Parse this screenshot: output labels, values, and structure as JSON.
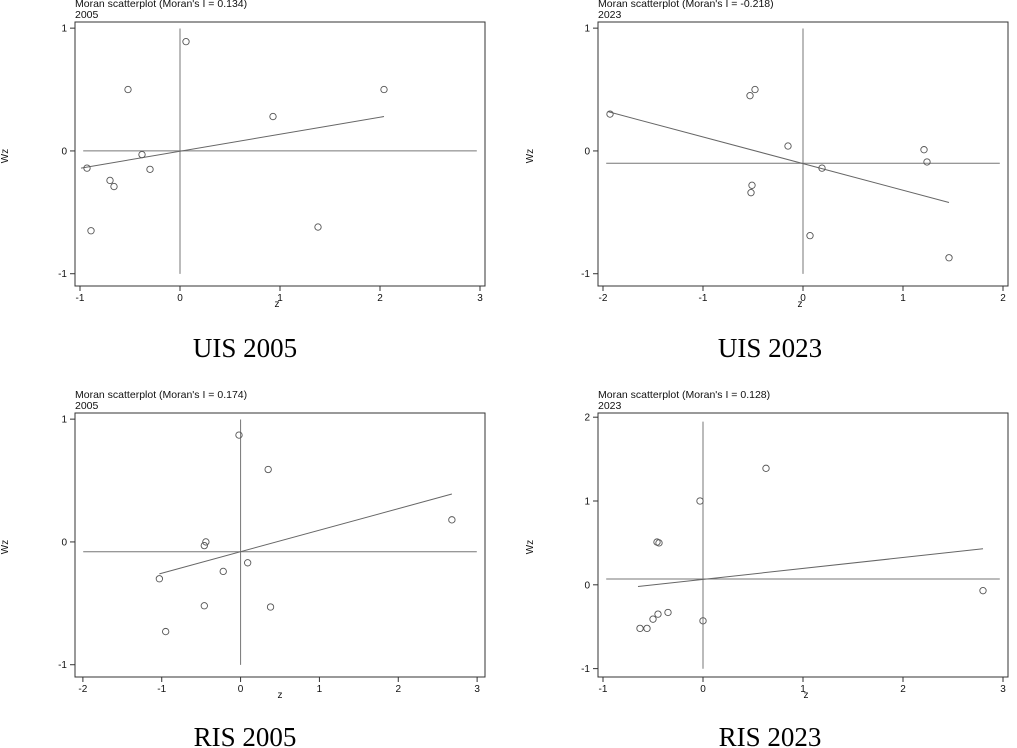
{
  "chart_data": [
    {
      "type": "scatter",
      "title": "Moran scatterplot (Moran's I = 0.134)",
      "subtitle": "2005",
      "caption": "UIS 2005",
      "xlabel": "z",
      "ylabel": "Wz",
      "xlim": [
        -1.05,
        3.05
      ],
      "ylim": [
        -1.1,
        1.05
      ],
      "xticks": [
        -1,
        0,
        1,
        2,
        3
      ],
      "yticks": [
        -1,
        0,
        1
      ],
      "grid": false,
      "x_zero_line": 0,
      "y_zero_line": 0,
      "fit_line": {
        "x": [
          -0.99,
          2.04
        ],
        "y": [
          -0.14,
          0.28
        ]
      },
      "points": [
        {
          "x": 0.06,
          "y": 0.89
        },
        {
          "x": -0.52,
          "y": 0.5
        },
        {
          "x": 2.04,
          "y": 0.5
        },
        {
          "x": 0.93,
          "y": 0.28
        },
        {
          "x": -0.38,
          "y": -0.03
        },
        {
          "x": -0.3,
          "y": -0.15
        },
        {
          "x": -0.93,
          "y": -0.14
        },
        {
          "x": -0.7,
          "y": -0.24
        },
        {
          "x": -0.66,
          "y": -0.29
        },
        {
          "x": -0.89,
          "y": -0.65
        },
        {
          "x": 1.38,
          "y": -0.62
        }
      ]
    },
    {
      "type": "scatter",
      "title": "Moran scatterplot (Moran's I = -0.218)",
      "subtitle": "2023",
      "caption": "UIS 2023",
      "xlabel": "z",
      "ylabel": "Wz",
      "xlim": [
        -2.05,
        2.05
      ],
      "ylim": [
        -1.1,
        1.05
      ],
      "xticks": [
        -2,
        -1,
        0,
        1,
        2
      ],
      "yticks": [
        -1,
        0,
        1
      ],
      "grid": false,
      "x_zero_line": 0,
      "y_zero_line": -0.1,
      "fit_line": {
        "x": [
          -1.95,
          1.46
        ],
        "y": [
          0.32,
          -0.42
        ]
      },
      "points": [
        {
          "x": -1.93,
          "y": 0.3
        },
        {
          "x": -0.48,
          "y": 0.5
        },
        {
          "x": -0.53,
          "y": 0.45
        },
        {
          "x": -0.15,
          "y": 0.04
        },
        {
          "x": 0.19,
          "y": -0.14
        },
        {
          "x": 1.21,
          "y": 0.01
        },
        {
          "x": 1.24,
          "y": -0.09
        },
        {
          "x": -0.51,
          "y": -0.28
        },
        {
          "x": -0.52,
          "y": -0.34
        },
        {
          "x": 0.07,
          "y": -0.69
        },
        {
          "x": 1.46,
          "y": -0.87
        }
      ]
    },
    {
      "type": "scatter",
      "title": "Moran scatterplot (Moran's I = 0.174)",
      "subtitle": "2005",
      "caption": "RIS 2005",
      "xlabel": "z",
      "ylabel": "Wz",
      "xlim": [
        -2.1,
        3.1
      ],
      "ylim": [
        -1.1,
        1.05
      ],
      "xticks": [
        -2,
        -1,
        0,
        1,
        2,
        3
      ],
      "yticks": [
        -1,
        0,
        1
      ],
      "grid": false,
      "x_zero_line": 0,
      "y_zero_line": -0.08,
      "fit_line": {
        "x": [
          -1.03,
          2.68
        ],
        "y": [
          -0.26,
          0.39
        ]
      },
      "points": [
        {
          "x": -0.02,
          "y": 0.87
        },
        {
          "x": 0.35,
          "y": 0.59
        },
        {
          "x": 2.68,
          "y": 0.18
        },
        {
          "x": -0.44,
          "y": 0.0
        },
        {
          "x": -0.46,
          "y": -0.03
        },
        {
          "x": 0.09,
          "y": -0.17
        },
        {
          "x": -0.22,
          "y": -0.24
        },
        {
          "x": -1.03,
          "y": -0.3
        },
        {
          "x": -0.46,
          "y": -0.52
        },
        {
          "x": 0.38,
          "y": -0.53
        },
        {
          "x": -0.95,
          "y": -0.73
        }
      ]
    },
    {
      "type": "scatter",
      "title": "Moran scatterplot (Moran's I = 0.128)",
      "subtitle": "2023",
      "caption": "RIS 2023",
      "xlabel": "z",
      "ylabel": "Wz",
      "xlim": [
        -1.05,
        3.05
      ],
      "ylim": [
        -1.1,
        2.05
      ],
      "xticks": [
        -1,
        0,
        1,
        2,
        3
      ],
      "yticks": [
        -1,
        0,
        1,
        2
      ],
      "grid": false,
      "x_zero_line": 0,
      "y_zero_line": 0.07,
      "fit_line": {
        "x": [
          -0.65,
          2.8
        ],
        "y": [
          -0.02,
          0.43
        ]
      },
      "points": [
        {
          "x": 0.63,
          "y": 1.39
        },
        {
          "x": -0.03,
          "y": 1.0
        },
        {
          "x": -0.46,
          "y": 0.51
        },
        {
          "x": -0.44,
          "y": 0.5
        },
        {
          "x": 2.8,
          "y": -0.07
        },
        {
          "x": -0.35,
          "y": -0.33
        },
        {
          "x": -0.45,
          "y": -0.35
        },
        {
          "x": -0.5,
          "y": -0.41
        },
        {
          "x": 0.0,
          "y": -0.43
        },
        {
          "x": -0.63,
          "y": -0.52
        },
        {
          "x": -0.56,
          "y": -0.52
        }
      ]
    }
  ]
}
